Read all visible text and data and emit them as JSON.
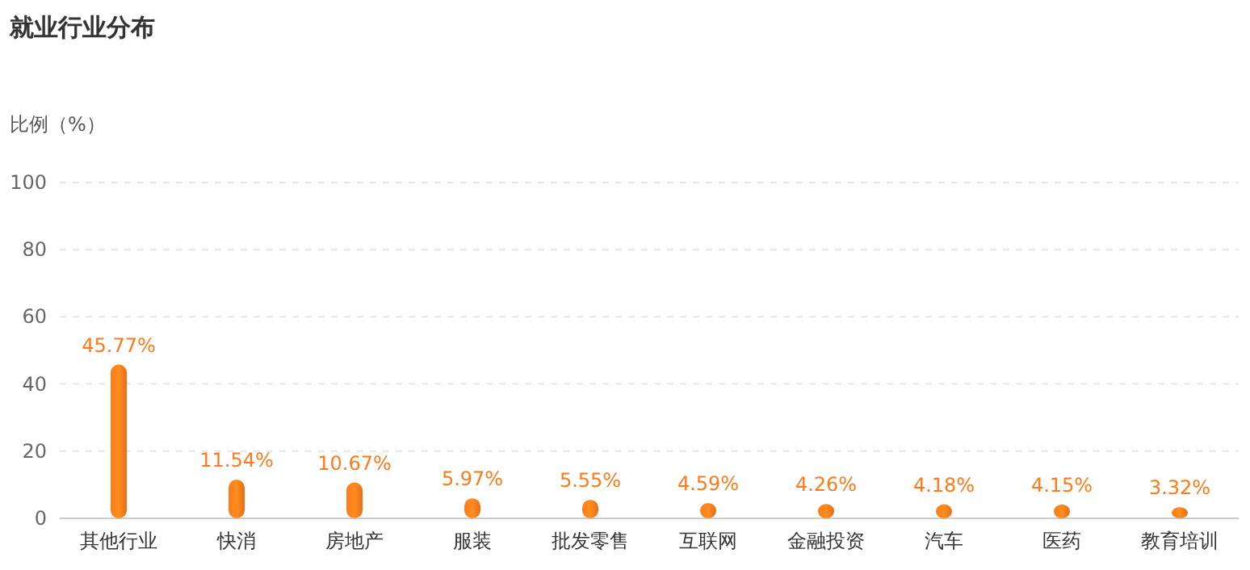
{
  "chart_data": {
    "type": "bar",
    "title": "就业行业分布",
    "ylabel": "比例（%）",
    "categories": [
      "其他行业",
      "快消",
      "房地产",
      "服装",
      "批发零售",
      "互联网",
      "金融投资",
      "汽车",
      "医药",
      "教育培训"
    ],
    "values": [
      45.77,
      11.54,
      10.67,
      5.97,
      5.55,
      4.59,
      4.26,
      4.18,
      4.15,
      3.32
    ],
    "value_labels": [
      "45.77%",
      "11.54%",
      "10.67%",
      "5.97%",
      "5.55%",
      "4.59%",
      "4.26%",
      "4.18%",
      "4.15%",
      "3.32%"
    ],
    "color": "#ff7a1a",
    "ylim": [
      0,
      100
    ],
    "yticks": [
      0,
      20,
      40,
      60,
      80,
      100
    ],
    "grid": "y"
  }
}
